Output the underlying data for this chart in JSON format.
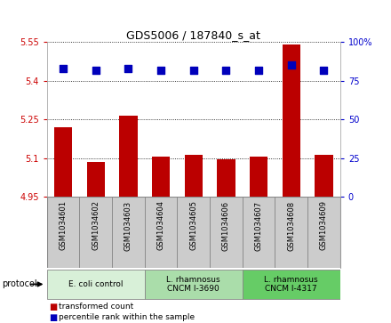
{
  "title": "GDS5006 / 187840_s_at",
  "samples": [
    "GSM1034601",
    "GSM1034602",
    "GSM1034603",
    "GSM1034604",
    "GSM1034605",
    "GSM1034606",
    "GSM1034607",
    "GSM1034608",
    "GSM1034609"
  ],
  "transformed_counts": [
    5.22,
    5.085,
    5.265,
    5.105,
    5.115,
    5.095,
    5.105,
    5.54,
    5.115
  ],
  "percentile_ranks": [
    83,
    82,
    83,
    82,
    82,
    82,
    82,
    85,
    82
  ],
  "ylim_left": [
    4.95,
    5.55
  ],
  "ylim_right": [
    0,
    100
  ],
  "yticks_left": [
    4.95,
    5.1,
    5.25,
    5.4,
    5.55
  ],
  "yticks_right": [
    0,
    25,
    50,
    75,
    100
  ],
  "ytick_labels_left": [
    "4.95",
    "5.1",
    "5.25",
    "5.4",
    "5.55"
  ],
  "ytick_labels_right": [
    "0",
    "25",
    "50",
    "75",
    "100%"
  ],
  "bar_color": "#bb0000",
  "dot_color": "#0000bb",
  "protocol_groups": [
    {
      "label": "E. coli control",
      "indices": [
        0,
        1,
        2
      ],
      "color": "#d8f0d8"
    },
    {
      "label": "L. rhamnosus\nCNCM I-3690",
      "indices": [
        3,
        4,
        5
      ],
      "color": "#aaddaa"
    },
    {
      "label": "L. rhamnosus\nCNCM I-4317",
      "indices": [
        6,
        7,
        8
      ],
      "color": "#66cc66"
    }
  ],
  "protocol_label": "protocol",
  "legend_bar_label": "transformed count",
  "legend_dot_label": "percentile rank within the sample",
  "bar_width": 0.55,
  "dot_size": 28,
  "background_color": "#ffffff",
  "plot_bg_color": "#ffffff",
  "tick_color_left": "#cc0000",
  "tick_color_right": "#0000cc",
  "sample_box_color": "#cccccc",
  "sample_box_edge": "#888888"
}
